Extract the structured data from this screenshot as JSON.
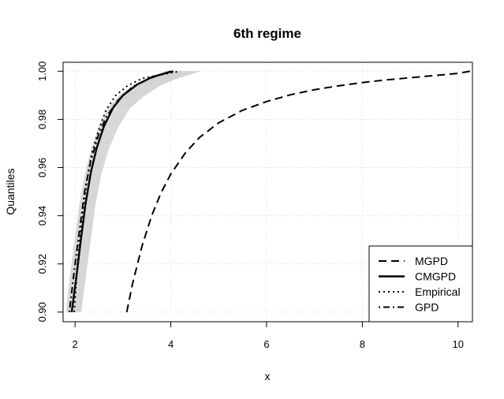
{
  "chart_data": {
    "type": "line",
    "title": "6th regime",
    "xlabel": "x",
    "ylabel": "Quantiles",
    "xlim": [
      1.75,
      10.3
    ],
    "ylim": [
      0.896,
      1.0037
    ],
    "x_ticks": [
      2,
      4,
      6,
      8,
      10
    ],
    "x_tick_labels": [
      "2",
      "4",
      "6",
      "8",
      "10"
    ],
    "y_ticks": [
      0.9,
      0.92,
      0.94,
      0.96,
      0.98,
      1.0
    ],
    "y_tick_labels": [
      "0.90",
      "0.92",
      "0.94",
      "0.96",
      "0.98",
      "1.00"
    ],
    "grid": true,
    "legend_position": "bottom-right",
    "series": [
      {
        "name": "MGPD",
        "style": "dashed",
        "color": "#000000",
        "points": [
          [
            3.08,
            0.9
          ],
          [
            3.2,
            0.9117
          ],
          [
            3.4,
            0.9276
          ],
          [
            3.6,
            0.94
          ],
          [
            3.8,
            0.9497
          ],
          [
            4.0,
            0.9573
          ],
          [
            4.3,
            0.966
          ],
          [
            4.6,
            0.9725
          ],
          [
            5.0,
            0.9786
          ],
          [
            5.5,
            0.9838
          ],
          [
            6.0,
            0.9874
          ],
          [
            6.5,
            0.9902
          ],
          [
            7.0,
            0.9923
          ],
          [
            7.5,
            0.9939
          ],
          [
            8.0,
            0.9953
          ],
          [
            8.5,
            0.9964
          ],
          [
            9.0,
            0.9973
          ],
          [
            9.5,
            0.9982
          ],
          [
            10.0,
            0.9991
          ],
          [
            10.25,
            1.0
          ]
        ]
      },
      {
        "name": "CMGPD",
        "style": "solid",
        "color": "#000000",
        "points": [
          [
            1.93,
            0.9
          ],
          [
            2.03,
            0.915
          ],
          [
            2.12,
            0.93
          ],
          [
            2.22,
            0.945
          ],
          [
            2.33,
            0.958
          ],
          [
            2.45,
            0.968
          ],
          [
            2.6,
            0.977
          ],
          [
            2.8,
            0.985
          ],
          [
            3.0,
            0.99
          ],
          [
            3.3,
            0.9945
          ],
          [
            3.6,
            0.9975
          ],
          [
            3.95,
            0.9995
          ],
          [
            4.05,
            1.0
          ]
        ]
      },
      {
        "name": "Empirical",
        "style": "dotted",
        "color": "#000000",
        "points": [
          [
            1.98,
            0.9
          ],
          [
            2.05,
            0.92
          ],
          [
            2.1,
            0.93
          ],
          [
            2.15,
            0.94
          ],
          [
            2.25,
            0.955
          ],
          [
            2.35,
            0.966
          ],
          [
            2.5,
            0.976
          ],
          [
            2.65,
            0.984
          ],
          [
            2.85,
            0.99
          ],
          [
            3.1,
            0.994
          ],
          [
            3.4,
            0.997
          ],
          [
            3.9,
            0.999
          ],
          [
            4.2,
            1.0
          ]
        ]
      },
      {
        "name": "GPD",
        "style": "dotdash",
        "color": "#000000",
        "points": [
          [
            1.88,
            0.9
          ],
          [
            2.0,
            0.92
          ],
          [
            2.1,
            0.935
          ],
          [
            2.2,
            0.95
          ],
          [
            2.32,
            0.962
          ],
          [
            2.48,
            0.973
          ],
          [
            2.65,
            0.981
          ],
          [
            2.9,
            0.988
          ],
          [
            3.2,
            0.9935
          ],
          [
            3.55,
            0.997
          ],
          [
            3.9,
            0.9993
          ],
          [
            4.0,
            1.0
          ]
        ]
      }
    ],
    "band": {
      "color": "#d3d3d3",
      "left": [
        [
          1.82,
          0.9
        ],
        [
          1.9,
          0.915
        ],
        [
          2.0,
          0.93
        ],
        [
          2.1,
          0.945
        ],
        [
          2.22,
          0.958
        ],
        [
          2.35,
          0.968
        ],
        [
          2.5,
          0.977
        ],
        [
          2.7,
          0.985
        ],
        [
          2.95,
          0.99
        ],
        [
          3.25,
          0.9945
        ],
        [
          3.6,
          0.9975
        ],
        [
          3.9,
          1.0
        ]
      ],
      "right": [
        [
          2.12,
          0.9
        ],
        [
          2.22,
          0.915
        ],
        [
          2.32,
          0.93
        ],
        [
          2.42,
          0.945
        ],
        [
          2.55,
          0.958
        ],
        [
          2.7,
          0.968
        ],
        [
          2.9,
          0.977
        ],
        [
          3.15,
          0.985
        ],
        [
          3.45,
          0.99
        ],
        [
          3.8,
          0.9945
        ],
        [
          4.2,
          0.9975
        ],
        [
          4.6,
          1.0
        ]
      ]
    }
  }
}
